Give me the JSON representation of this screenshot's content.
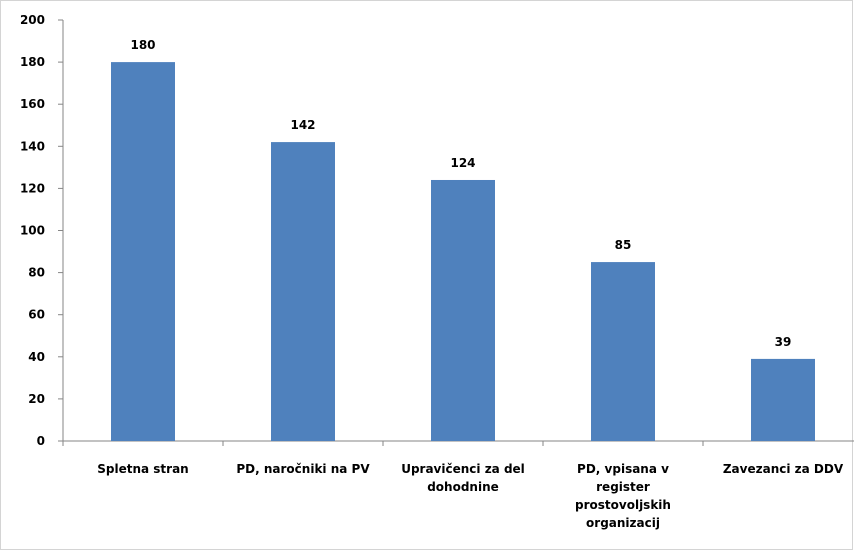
{
  "chart_data": {
    "type": "bar",
    "title": "",
    "xlabel": "",
    "ylabel": "",
    "categories": [
      [
        "Spletna stran"
      ],
      [
        "PD, naročniki na PV"
      ],
      [
        "Upravičenci za del",
        "dohodnine"
      ],
      [
        "PD, vpisana v",
        "register",
        "prostovoljskih",
        "organizacij"
      ],
      [
        "Zavezanci za DDV"
      ]
    ],
    "values": [
      180,
      142,
      124,
      85,
      39
    ],
    "data_labels": [
      "180",
      "142",
      "124",
      "85",
      "39"
    ],
    "ylim": [
      0,
      200
    ],
    "yticks": [
      0,
      20,
      40,
      60,
      80,
      100,
      120,
      140,
      160,
      180,
      200
    ],
    "grid": false,
    "legend": "none",
    "bar_color": "#4F81BD",
    "axis_color": "#868686"
  }
}
